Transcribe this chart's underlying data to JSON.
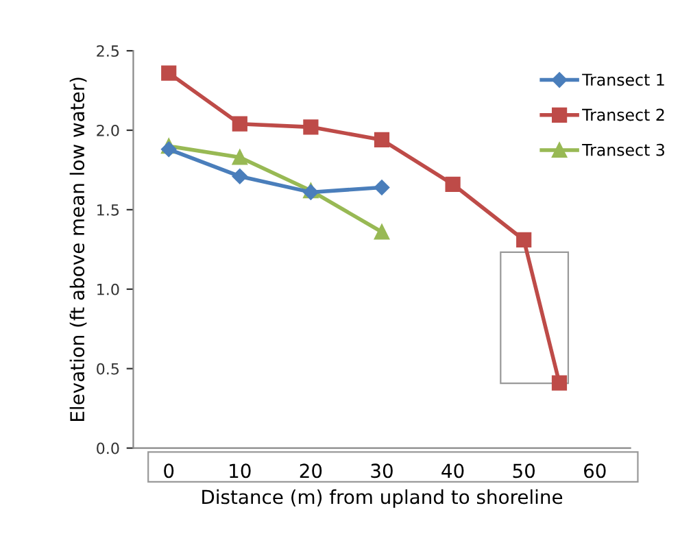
{
  "chart_data": {
    "type": "line",
    "xlabel": "Distance (m) from upland to shoreline",
    "ylabel": "Elevation (ft above mean low water)",
    "xlim": [
      -5,
      65
    ],
    "xticks": [
      0,
      10,
      20,
      30,
      40,
      50,
      60
    ],
    "ylim": [
      0,
      2.5
    ],
    "yticks": [
      {
        "value": 0,
        "label": "0.0"
      },
      {
        "value": 0.5,
        "label": "0.5"
      },
      {
        "value": 1,
        "label": "1.0"
      },
      {
        "value": 1.5,
        "label": "1.5"
      },
      {
        "value": 2,
        "label": "2.0"
      },
      {
        "value": 2.5,
        "label": "2.5"
      }
    ],
    "grid": false,
    "legend": "top right",
    "series": [
      {
        "name": "Transect 1",
        "color": "#4a7ebb",
        "marker": "diamond",
        "x": [
          0,
          10,
          20,
          30
        ],
        "values": [
          1.88,
          1.71,
          1.61,
          1.64
        ]
      },
      {
        "name": "Transect 2",
        "color": "#be4b48",
        "marker": "square",
        "x": [
          0,
          10,
          20,
          30,
          40,
          50,
          55
        ],
        "values": [
          2.36,
          2.04,
          2.02,
          1.94,
          1.66,
          1.31,
          0.41
        ]
      },
      {
        "name": "Transect 3",
        "color": "#98b954",
        "marker": "triangle",
        "x": [
          0,
          10,
          20,
          30
        ],
        "values": [
          1.9,
          1.83,
          1.62,
          1.36
        ]
      }
    ]
  }
}
